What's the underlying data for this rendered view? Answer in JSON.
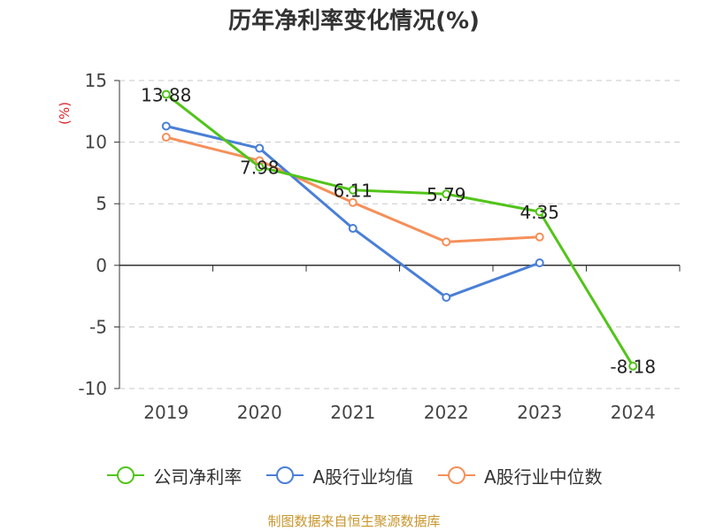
{
  "chart_data": {
    "type": "line",
    "title": "历年净利率变化情况(%)",
    "ylabel": "(%)",
    "categories": [
      "2019",
      "2020",
      "2021",
      "2022",
      "2023",
      "2024"
    ],
    "yticks": [
      "15",
      "10",
      "5",
      "0",
      "-5",
      "-10"
    ],
    "ylim": [
      -10,
      15
    ],
    "grid": true,
    "legend_position": "bottom",
    "series": [
      {
        "name": "公司净利率",
        "color": "#52c41a",
        "values": [
          13.88,
          7.98,
          6.11,
          5.79,
          4.35,
          -8.18
        ],
        "labels": [
          "13.88",
          "7.98",
          "6.11",
          "5.79",
          "4.35",
          "-8.18"
        ]
      },
      {
        "name": "A股行业均值",
        "color": "#4a7fd6",
        "values": [
          11.3,
          9.5,
          3.0,
          -2.6,
          0.2,
          null
        ]
      },
      {
        "name": "A股行业中位数",
        "color": "#f5905a",
        "values": [
          10.4,
          8.5,
          5.1,
          1.9,
          2.3,
          null
        ]
      }
    ]
  },
  "source": "制图数据来自恒生聚源数据库"
}
